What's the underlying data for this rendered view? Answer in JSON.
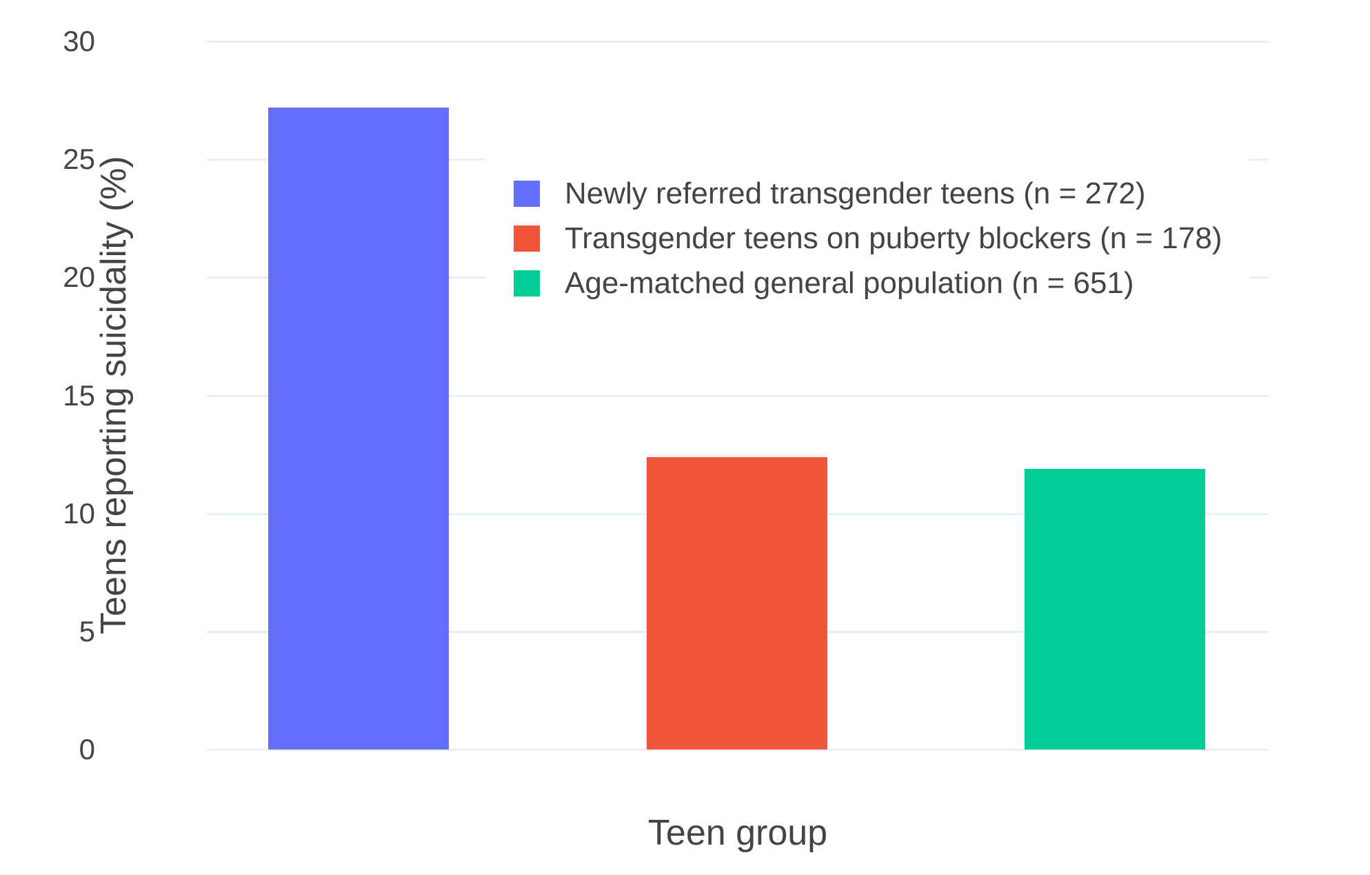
{
  "chart_data": {
    "type": "bar",
    "title": "",
    "xlabel": "Teen group",
    "ylabel": "Teens reporting suicidality (%)",
    "ylim": [
      0,
      30
    ],
    "yticks": [
      0,
      5,
      10,
      15,
      20,
      25,
      30
    ],
    "grid": true,
    "legend_position": "inside upper center-right",
    "categories": [
      "Newly referred transgender teens",
      "Transgender teens on puberty blockers",
      "Age-matched general population"
    ],
    "series": [
      {
        "name": "Newly referred transgender teens (n = 272)",
        "value": 27.2,
        "color": "#636efa"
      },
      {
        "name": "Transgender teens on puberty blockers (n = 178)",
        "value": 12.4,
        "color": "#ef553b"
      },
      {
        "name": "Age-matched general population (n = 651)",
        "value": 11.9,
        "color": "#00cc96"
      }
    ]
  },
  "colors": {
    "background": "#ffffff",
    "gridline": "#e8eef6",
    "text": "#444444"
  }
}
